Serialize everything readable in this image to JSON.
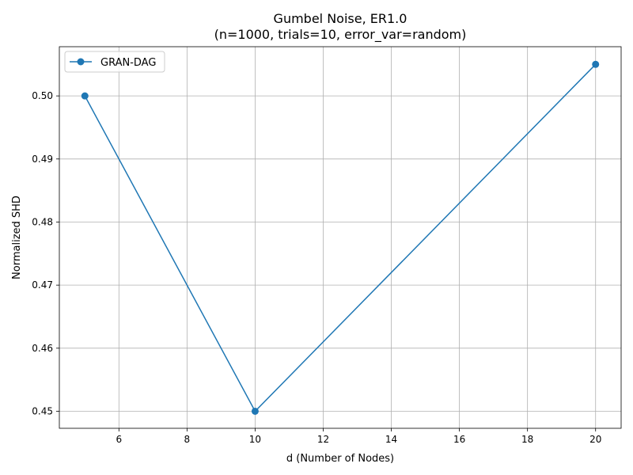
{
  "chart_data": {
    "type": "line",
    "title": "Gumbel Noise, ER1.0",
    "subtitle": "(n=1000, trials=10, error_var=random)",
    "xlabel": "d (Number of Nodes)",
    "ylabel": "Normalized SHD",
    "xlim": [
      4.25,
      20.75
    ],
    "ylim": [
      0.4473,
      0.5078
    ],
    "xticks": [
      6,
      8,
      10,
      12,
      14,
      16,
      18,
      20
    ],
    "yticks": [
      0.45,
      0.46,
      0.47,
      0.48,
      0.49,
      0.5
    ],
    "ytick_labels": [
      "0.45",
      "0.46",
      "0.47",
      "0.48",
      "0.49",
      "0.50"
    ],
    "grid": true,
    "legend_position": "top-left",
    "color": "#1f77b4",
    "series": [
      {
        "name": "GRAN-DAG",
        "x": [
          5,
          10,
          20
        ],
        "y": [
          0.5,
          0.45,
          0.505
        ]
      }
    ]
  }
}
